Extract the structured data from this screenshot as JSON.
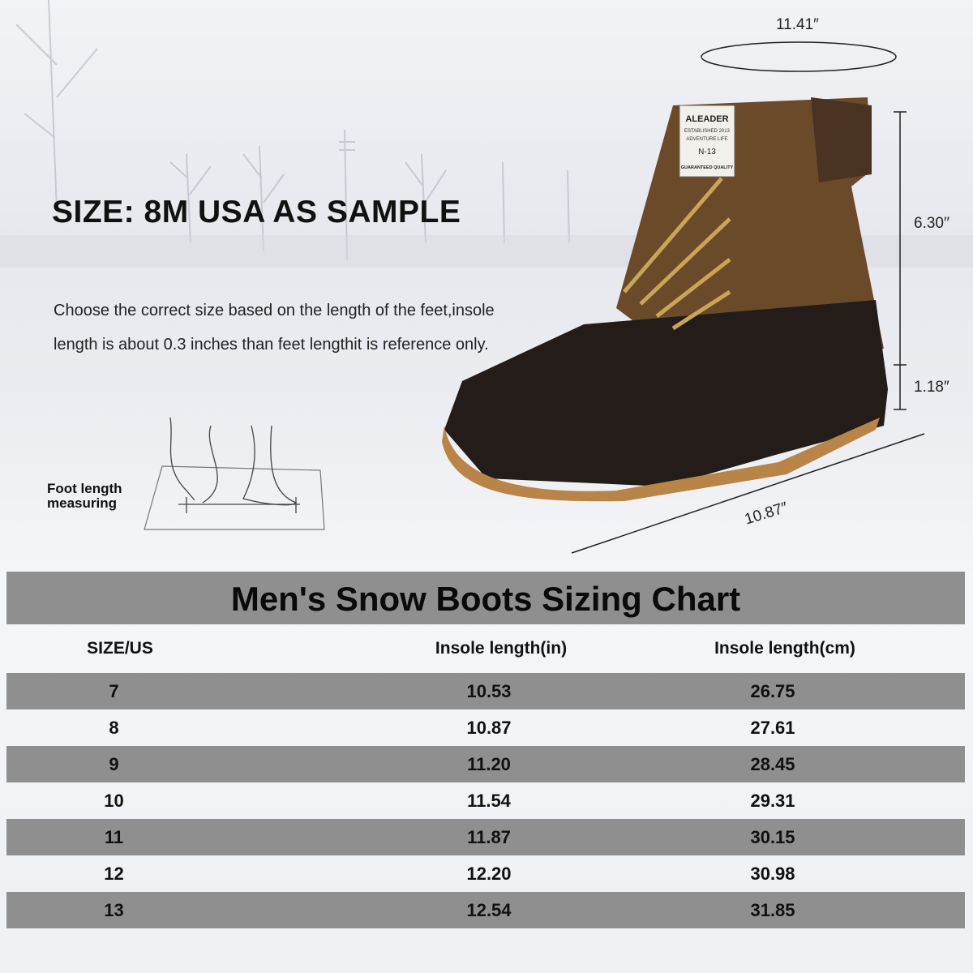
{
  "heading": "SIZE: 8M USA AS SAMPLE",
  "description": "Choose the correct size based on the length of the feet,insole length is about 0.3 inches than feet lengthit is reference only.",
  "foot_label_line1": "Foot length",
  "foot_label_line2": "measuring",
  "dimensions": {
    "circumference": "11.41″",
    "shaft_height": "6.30′′",
    "heel_height": "1.18″",
    "length": "10.87″"
  },
  "boot_label": {
    "brand": "ALEADER",
    "established": "ESTABLISHED 2013",
    "tagline": "ADVENTURE LIFE",
    "model": "N-13",
    "quality": "GUARANTEED QUALITY"
  },
  "colors": {
    "table_band": "#8f8f8f",
    "boot_upper": "#6b4a2a",
    "boot_rubber": "#231c18",
    "boot_sole": "#b98448"
  },
  "table": {
    "title": "Men's Snow Boots Sizing Chart",
    "headers": [
      "SIZE/US",
      "Insole length(in)",
      "Insole length(cm)"
    ],
    "rows": [
      [
        "7",
        "10.53",
        "26.75"
      ],
      [
        "8",
        "10.87",
        "27.61"
      ],
      [
        "9",
        "11.20",
        "28.45"
      ],
      [
        "10",
        "11.54",
        "29.31"
      ],
      [
        "11",
        "11.87",
        "30.15"
      ],
      [
        "12",
        "12.20",
        "30.98"
      ],
      [
        "13",
        "12.54",
        "31.85"
      ]
    ]
  }
}
